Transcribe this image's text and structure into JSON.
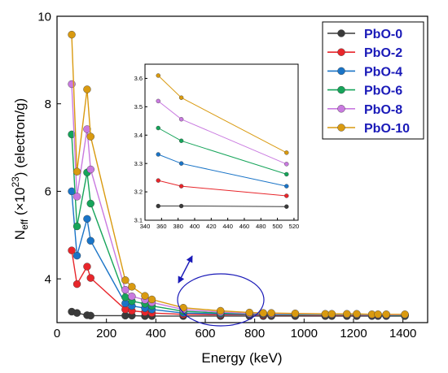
{
  "colors": {
    "PbO-0": "#3a3a3a",
    "PbO-2": "#e8262b",
    "PbO-4": "#1a74c7",
    "PbO-6": "#16a45a",
    "PbO-8": "#c97ae0",
    "PbO-10": "#d99a10",
    "legend_text": "#1a1ab8",
    "annotation": "#1a1ab8"
  },
  "chart_data": [
    {
      "type": "scatter",
      "xlabel": "Energy (keV)",
      "ylabel_main": "N",
      "ylabel_sub": "eff",
      "ylabel_mid": " (×10",
      "ylabel_sup": "23",
      "ylabel_end": ") (electron/g)",
      "xlim": [
        0,
        1500
      ],
      "ylim": [
        3,
        10
      ],
      "x_ticks": [
        0,
        200,
        400,
        600,
        800,
        1000,
        1200,
        1400
      ],
      "y_ticks": [
        4,
        6,
        8,
        10
      ],
      "legend_position": "top-right",
      "x": [
        59.5,
        80.9,
        121.8,
        136.0,
        276.4,
        302.9,
        356.0,
        383.9,
        511.0,
        661.7,
        778.9,
        834.8,
        867.4,
        964.1,
        1085.8,
        1112.1,
        1173.2,
        1213.0,
        1274.5,
        1299.1,
        1332.5,
        1408.0
      ],
      "series": [
        {
          "name": "PbO-0",
          "values": [
            3.25,
            3.22,
            3.17,
            3.16,
            3.16,
            3.16,
            3.15,
            3.15,
            3.15,
            3.15,
            3.15,
            3.15,
            3.15,
            3.15,
            3.15,
            3.15,
            3.15,
            3.15,
            3.15,
            3.15,
            3.15,
            3.15
          ]
        },
        {
          "name": "PbO-2",
          "values": [
            4.65,
            3.88,
            4.28,
            4.02,
            3.3,
            3.27,
            3.24,
            3.22,
            3.19,
            3.18,
            3.18,
            3.17,
            3.17,
            3.17,
            3.17,
            3.17,
            3.17,
            3.17,
            3.17,
            3.17,
            3.17,
            3.17
          ]
        },
        {
          "name": "PbO-4",
          "values": [
            6.0,
            4.53,
            5.37,
            4.87,
            3.44,
            3.38,
            3.33,
            3.3,
            3.22,
            3.2,
            3.19,
            3.19,
            3.18,
            3.18,
            3.18,
            3.18,
            3.18,
            3.18,
            3.17,
            3.17,
            3.17,
            3.17
          ]
        },
        {
          "name": "PbO-6",
          "values": [
            7.3,
            5.2,
            6.43,
            5.72,
            3.58,
            3.49,
            3.43,
            3.38,
            3.26,
            3.22,
            3.2,
            3.2,
            3.19,
            3.19,
            3.18,
            3.18,
            3.18,
            3.18,
            3.18,
            3.18,
            3.18,
            3.17
          ]
        },
        {
          "name": "PbO-8",
          "values": [
            8.45,
            5.88,
            7.42,
            6.5,
            3.75,
            3.6,
            3.52,
            3.46,
            3.3,
            3.24,
            3.21,
            3.21,
            3.2,
            3.2,
            3.19,
            3.19,
            3.19,
            3.19,
            3.18,
            3.18,
            3.18,
            3.18
          ]
        },
        {
          "name": "PbO-10",
          "values": [
            9.58,
            6.45,
            8.33,
            7.25,
            3.97,
            3.82,
            3.61,
            3.53,
            3.34,
            3.27,
            3.23,
            3.22,
            3.22,
            3.21,
            3.2,
            3.2,
            3.2,
            3.2,
            3.19,
            3.19,
            3.19,
            3.19
          ]
        }
      ]
    },
    {
      "type": "line",
      "xlim": [
        340,
        525
      ],
      "ylim": [
        3.1,
        3.65
      ],
      "x_ticks": [
        340,
        360,
        380,
        400,
        420,
        440,
        460,
        480,
        500,
        520
      ],
      "y_ticks": [
        3.1,
        3.2,
        3.3,
        3.4,
        3.5,
        3.6
      ],
      "x": [
        356.0,
        383.9,
        511.0
      ],
      "series": [
        {
          "name": "PbO-0",
          "values": [
            3.15,
            3.15,
            3.148
          ]
        },
        {
          "name": "PbO-2",
          "values": [
            3.24,
            3.22,
            3.186
          ]
        },
        {
          "name": "PbO-4",
          "values": [
            3.332,
            3.3,
            3.22
          ]
        },
        {
          "name": "PbO-6",
          "values": [
            3.425,
            3.38,
            3.262
          ]
        },
        {
          "name": "PbO-8",
          "values": [
            3.52,
            3.456,
            3.298
          ]
        },
        {
          "name": "PbO-10",
          "values": [
            3.61,
            3.532,
            3.338
          ]
        }
      ]
    }
  ]
}
